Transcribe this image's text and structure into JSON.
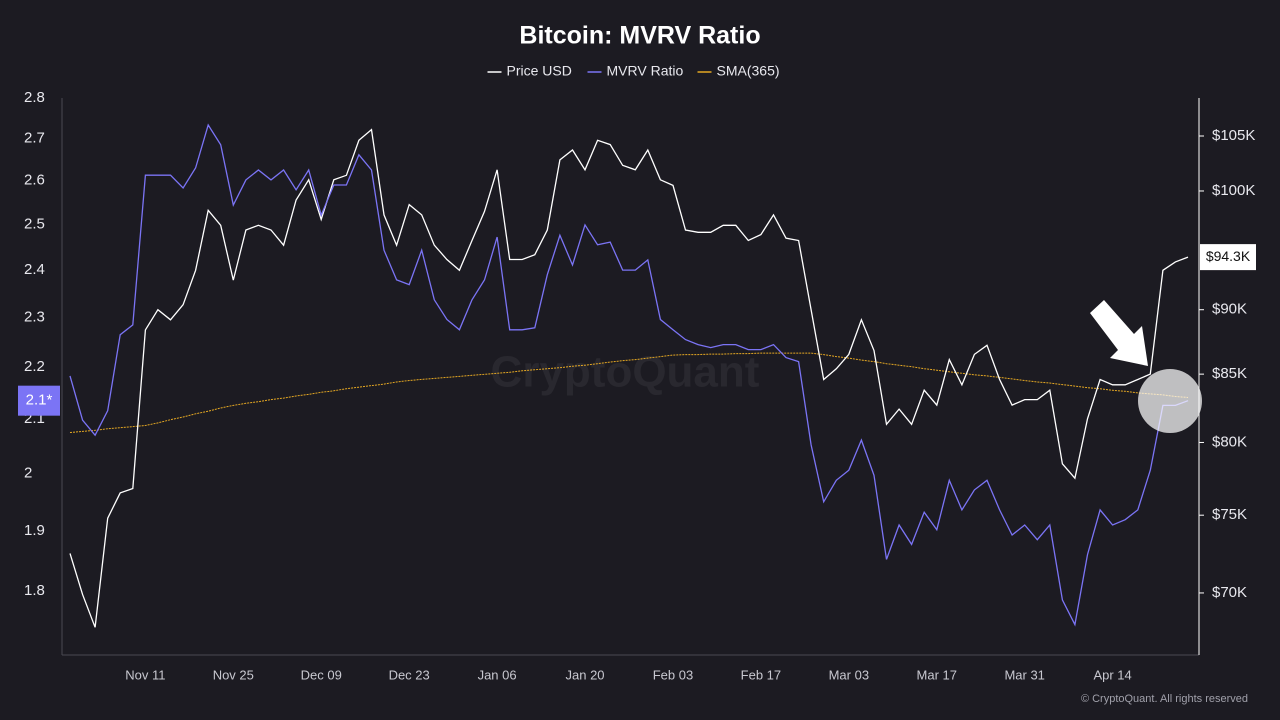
{
  "chart_data": {
    "type": "line",
    "title": "Bitcoin: MVRV Ratio",
    "watermark": "CryptoQuant",
    "footer": "© CryptoQuant. All rights reserved",
    "legend_position": "top",
    "grid": false,
    "log_scale": true,
    "categories": [
      null,
      null,
      null,
      null,
      null,
      null,
      "Nov 11",
      null,
      null,
      null,
      null,
      null,
      null,
      "Nov 25",
      null,
      null,
      null,
      null,
      null,
      null,
      "Dec 09",
      null,
      null,
      null,
      null,
      null,
      null,
      "Dec 23",
      null,
      null,
      null,
      null,
      null,
      null,
      "Jan 06",
      null,
      null,
      null,
      null,
      null,
      null,
      "Jan 20",
      null,
      null,
      null,
      null,
      null,
      null,
      "Feb 03",
      null,
      null,
      null,
      null,
      null,
      null,
      "Feb 17",
      null,
      null,
      null,
      null,
      null,
      null,
      "Mar 03",
      null,
      null,
      null,
      null,
      null,
      null,
      "Mar 17",
      null,
      null,
      null,
      null,
      null,
      null,
      "Mar 31",
      null,
      null,
      null,
      null,
      null,
      null,
      "Apr 14",
      null,
      null,
      null,
      null,
      null,
      null
    ],
    "ylim": [
      1.7,
      2.8
    ],
    "yticks": [
      1.8,
      1.9,
      2,
      2.1,
      2.2,
      2.3,
      2.4,
      2.5,
      2.6,
      2.7,
      2.8
    ],
    "y2lim": [
      66250,
      108600
    ],
    "y2ticks": [
      {
        "value": 70000,
        "label": "$70K"
      },
      {
        "value": 75000,
        "label": "$75K"
      },
      {
        "value": 80000,
        "label": "$80K"
      },
      {
        "value": 85000,
        "label": "$85K"
      },
      {
        "value": 90000,
        "label": "$90K"
      },
      {
        "value": 100000,
        "label": "$100K"
      },
      {
        "value": 105000,
        "label": "$105K"
      }
    ],
    "series": [
      {
        "name": "Price USD",
        "color": "#ffffff",
        "axis": "y2",
        "last_label": "$94.3K",
        "values": [
          72500,
          69900,
          67900,
          74800,
          76500,
          76800,
          88400,
          90000,
          89200,
          90400,
          93200,
          98300,
          97000,
          92400,
          96600,
          97000,
          96600,
          95300,
          99200,
          101000,
          97500,
          101000,
          101400,
          104600,
          105600,
          97900,
          95300,
          98800,
          97900,
          95300,
          94100,
          93200,
          95700,
          98200,
          101900,
          94100,
          94100,
          94500,
          96600,
          102800,
          103700,
          101900,
          104600,
          104200,
          102300,
          101900,
          103700,
          101000,
          100500,
          96600,
          96400,
          96400,
          97000,
          97000,
          95700,
          96200,
          97900,
          95900,
          95700,
          90000,
          84600,
          85400,
          86500,
          89200,
          86800,
          81300,
          82400,
          81300,
          83800,
          82700,
          86100,
          84200,
          86500,
          87200,
          84600,
          82700,
          83100,
          83100,
          83800,
          78500,
          77500,
          81700,
          84600,
          84200,
          84200,
          84600,
          85000,
          93200,
          93900,
          94300
        ]
      },
      {
        "name": "MVRV Ratio",
        "color": "#7b74f5",
        "axis": "y",
        "last_label": "2.1*",
        "values": [
          2.183,
          2.098,
          2.07,
          2.116,
          2.265,
          2.285,
          2.613,
          2.613,
          2.613,
          2.583,
          2.63,
          2.733,
          2.685,
          2.544,
          2.602,
          2.625,
          2.602,
          2.625,
          2.579,
          2.625,
          2.521,
          2.59,
          2.59,
          2.661,
          2.625,
          2.443,
          2.379,
          2.369,
          2.443,
          2.337,
          2.296,
          2.275,
          2.337,
          2.379,
          2.472,
          2.275,
          2.275,
          2.279,
          2.39,
          2.476,
          2.411,
          2.499,
          2.455,
          2.461,
          2.4,
          2.4,
          2.422,
          2.296,
          2.275,
          2.255,
          2.245,
          2.239,
          2.245,
          2.245,
          2.235,
          2.235,
          2.245,
          2.219,
          2.211,
          2.052,
          1.95,
          1.988,
          2.006,
          2.061,
          1.997,
          1.852,
          1.91,
          1.877,
          1.932,
          1.902,
          1.988,
          1.936,
          1.971,
          1.988,
          1.936,
          1.893,
          1.91,
          1.885,
          1.91,
          1.786,
          1.747,
          1.86,
          1.936,
          1.91,
          1.919,
          1.936,
          2.006,
          2.126,
          2.126,
          2.135
        ]
      },
      {
        "name": "SMA(365)",
        "color": "#e5a823",
        "axis": "y",
        "values": [
          2.075,
          2.077,
          2.079,
          2.082,
          2.084,
          2.086,
          2.088,
          2.093,
          2.099,
          2.104,
          2.11,
          2.115,
          2.121,
          2.126,
          2.13,
          2.133,
          2.137,
          2.14,
          2.144,
          2.147,
          2.151,
          2.154,
          2.158,
          2.161,
          2.164,
          2.167,
          2.171,
          2.174,
          2.176,
          2.178,
          2.18,
          2.182,
          2.184,
          2.186,
          2.188,
          2.19,
          2.193,
          2.195,
          2.197,
          2.199,
          2.202,
          2.204,
          2.207,
          2.21,
          2.213,
          2.215,
          2.218,
          2.221,
          2.224,
          2.225,
          2.225,
          2.226,
          2.226,
          2.227,
          2.227,
          2.228,
          2.228,
          2.228,
          2.228,
          2.228,
          2.225,
          2.221,
          2.218,
          2.214,
          2.211,
          2.207,
          2.204,
          2.201,
          2.197,
          2.194,
          2.191,
          2.188,
          2.185,
          2.183,
          2.18,
          2.177,
          2.174,
          2.171,
          2.169,
          2.166,
          2.163,
          2.16,
          2.158,
          2.155,
          2.153,
          2.15,
          2.148,
          2.146,
          2.143,
          2.141
        ]
      }
    ]
  }
}
